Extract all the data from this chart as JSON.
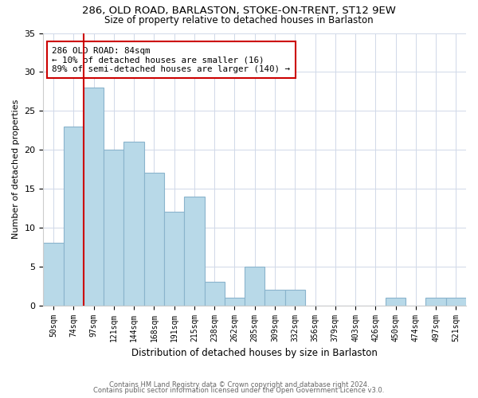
{
  "title1": "286, OLD ROAD, BARLASTON, STOKE-ON-TRENT, ST12 9EW",
  "title2": "Size of property relative to detached houses in Barlaston",
  "xlabel": "Distribution of detached houses by size in Barlaston",
  "ylabel": "Number of detached properties",
  "bins": [
    "50sqm",
    "74sqm",
    "97sqm",
    "121sqm",
    "144sqm",
    "168sqm",
    "191sqm",
    "215sqm",
    "238sqm",
    "262sqm",
    "285sqm",
    "309sqm",
    "332sqm",
    "356sqm",
    "379sqm",
    "403sqm",
    "426sqm",
    "450sqm",
    "474sqm",
    "497sqm",
    "521sqm"
  ],
  "values": [
    8,
    23,
    28,
    20,
    21,
    17,
    12,
    14,
    3,
    1,
    5,
    2,
    2,
    0,
    0,
    0,
    0,
    1,
    0,
    1,
    1
  ],
  "bar_color": "#b8d9e8",
  "bar_edge_color": "#8ab4cc",
  "marker_line_color": "#cc0000",
  "annotation_title": "286 OLD ROAD: 84sqm",
  "annotation_line1": "← 10% of detached houses are smaller (16)",
  "annotation_line2": "89% of semi-detached houses are larger (140) →",
  "annotation_box_color": "#ffffff",
  "annotation_box_edge": "#cc0000",
  "ylim": [
    0,
    35
  ],
  "yticks": [
    0,
    5,
    10,
    15,
    20,
    25,
    30,
    35
  ],
  "grid_color": "#d0d8e8",
  "footer1": "Contains HM Land Registry data © Crown copyright and database right 2024.",
  "footer2": "Contains public sector information licensed under the Open Government Licence v3.0."
}
